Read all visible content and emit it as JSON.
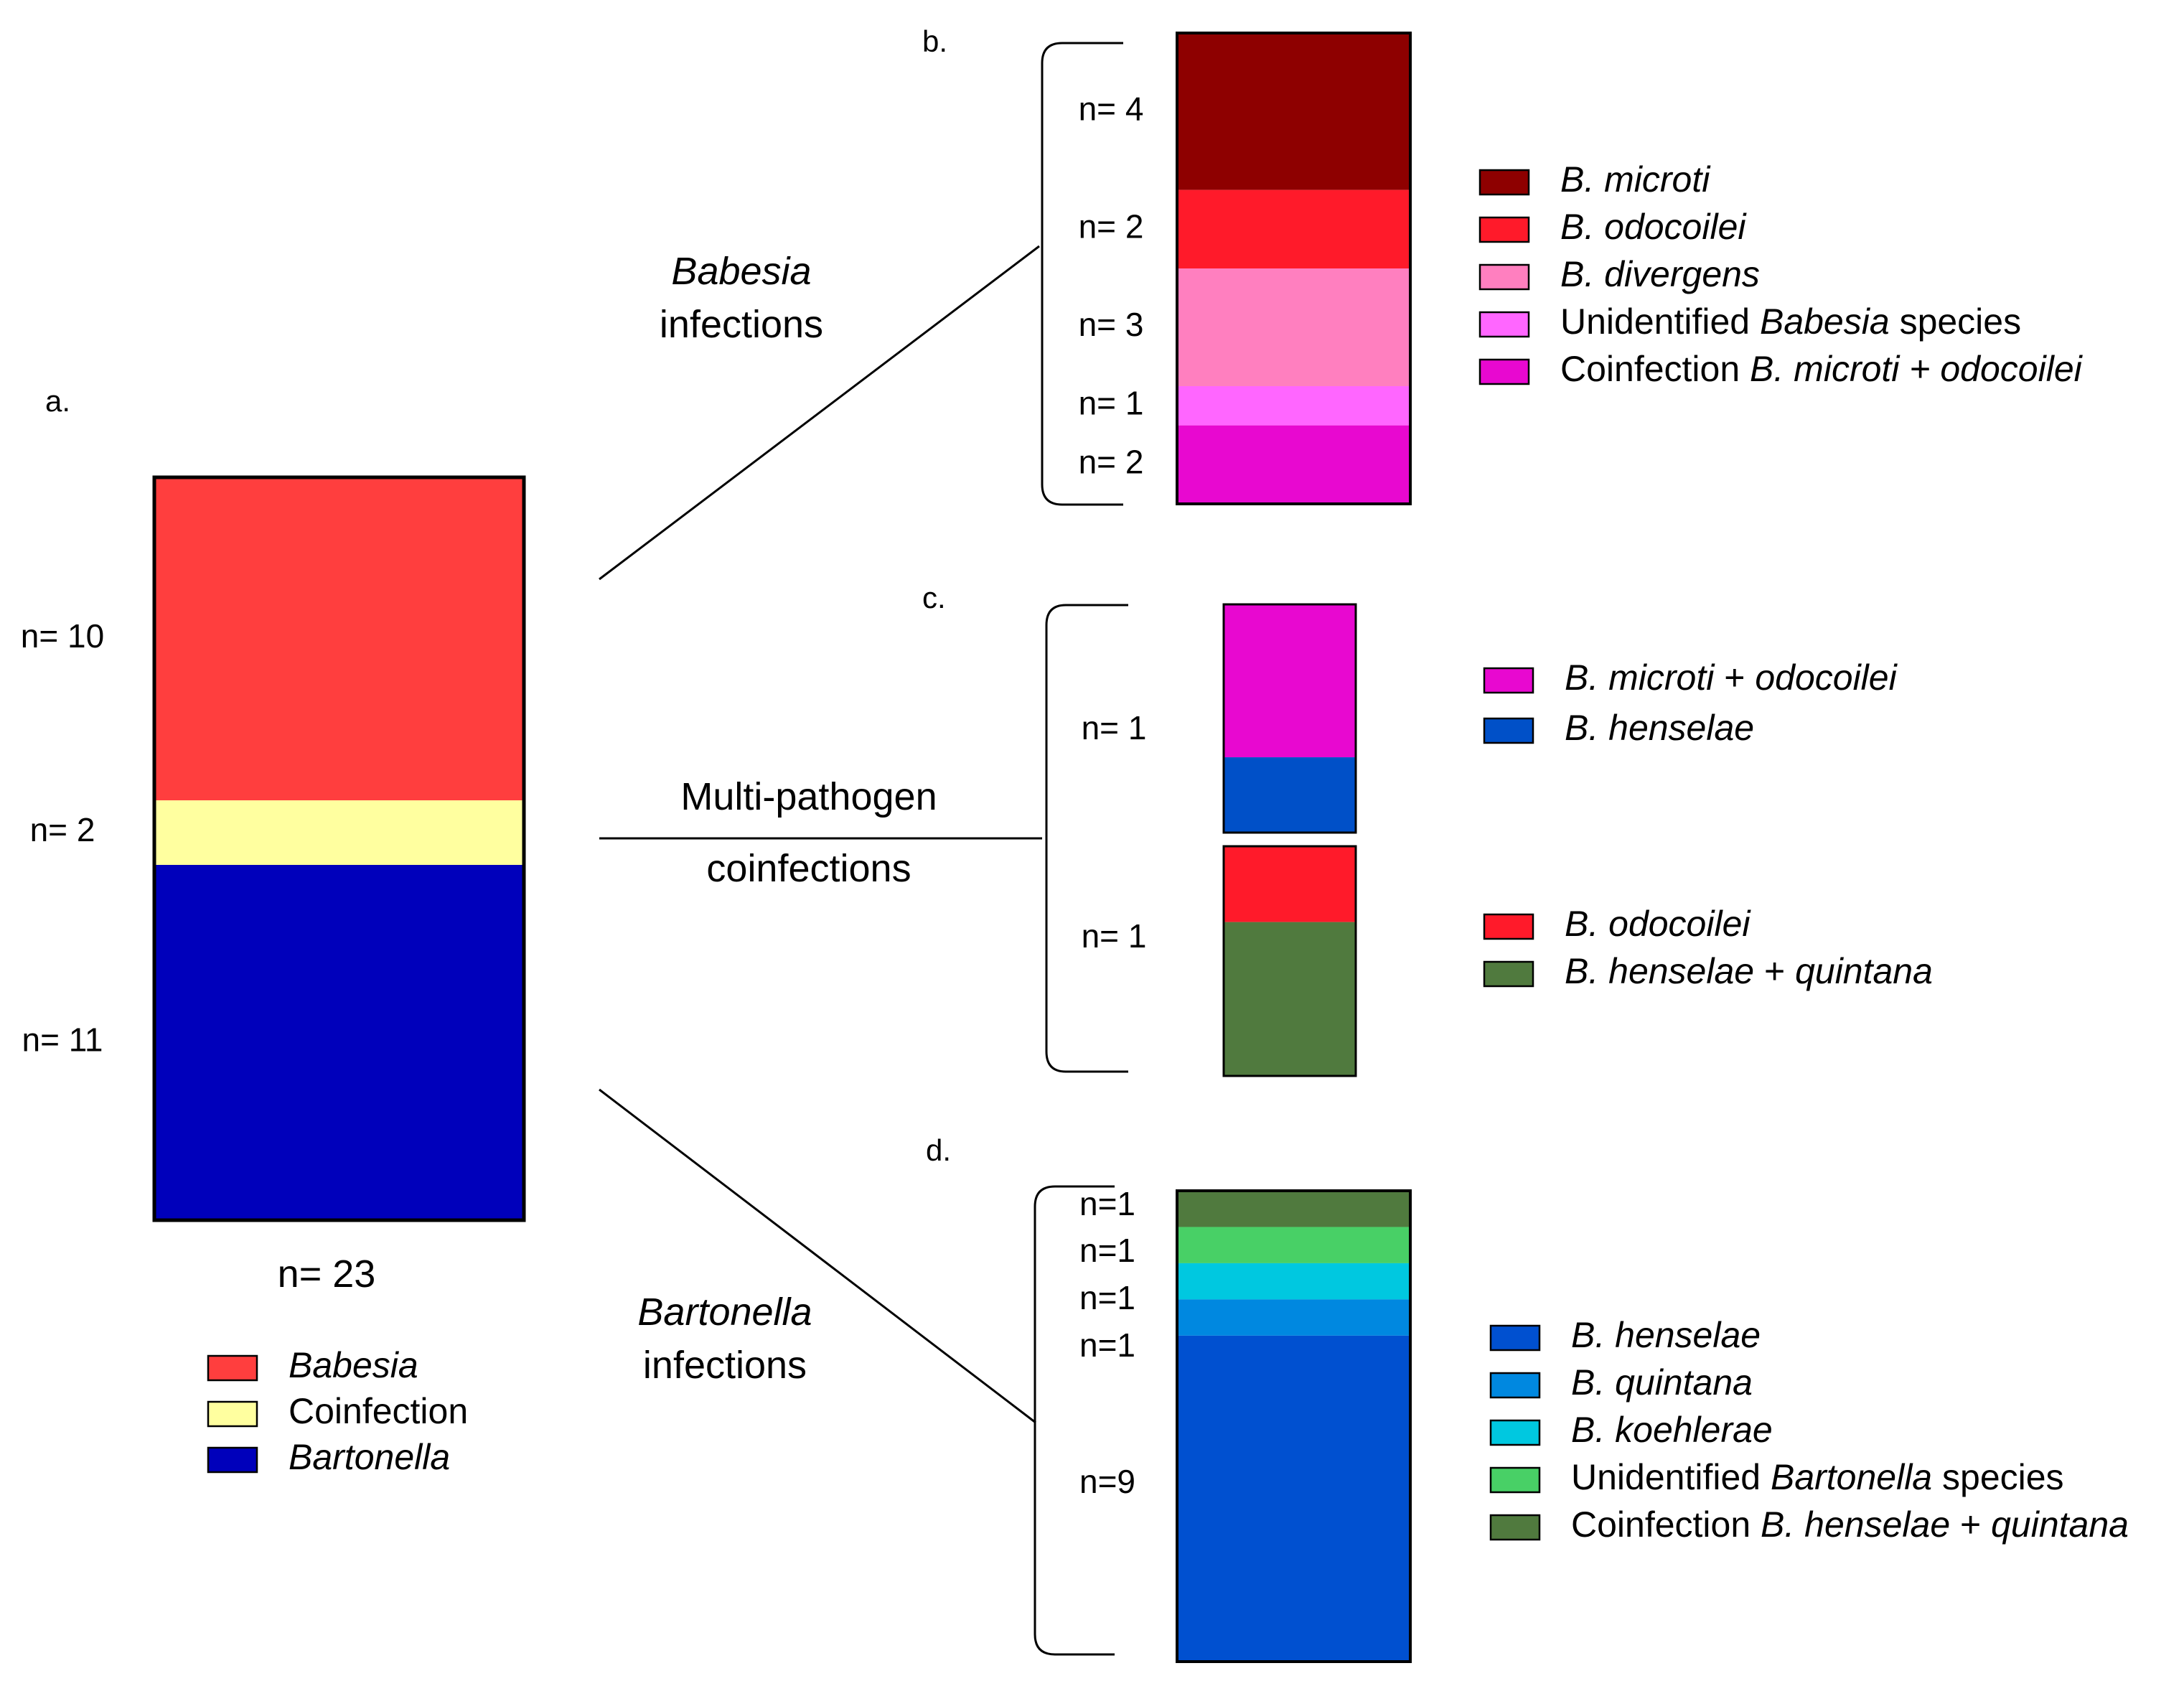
{
  "chart_data": [
    {
      "panel": "a.",
      "type": "stacked-bar",
      "total_label": "n= 23",
      "segments": [
        {
          "name": "Babesia",
          "n": 10,
          "label": "n= 10",
          "color": "#FF3E3E"
        },
        {
          "name": "Coinfection",
          "n": 2,
          "label": "n= 2",
          "color": "#FFFF9F"
        },
        {
          "name": "Bartonella",
          "n": 11,
          "label": "n= 11",
          "color": "#0000BB"
        }
      ],
      "legend": [
        {
          "parts": [
            {
              "t": "Babesia",
              "i": true
            }
          ],
          "color": "#FF3E3E"
        },
        {
          "parts": [
            {
              "t": "Coinfection",
              "i": false
            }
          ],
          "color": "#FFFF9F"
        },
        {
          "parts": [
            {
              "t": "Bartonella",
              "i": true
            }
          ],
          "color": "#0000BB"
        }
      ]
    },
    {
      "panel": "b.",
      "type": "stacked-bar",
      "segments": [
        {
          "n": 4,
          "label": "n= 4",
          "color": "#8E0000"
        },
        {
          "n": 2,
          "label": "n= 2",
          "color": "#FF1A2A"
        },
        {
          "n": 3,
          "label": "n= 3",
          "color": "#FF7FBF"
        },
        {
          "n": 1,
          "label": "n= 1",
          "color": "#FF66FF"
        },
        {
          "n": 2,
          "label": "n= 2",
          "color": "#E808D0"
        }
      ],
      "legend": [
        {
          "parts": [
            {
              "t": "B. microti",
              "i": true
            }
          ],
          "color": "#8E0000"
        },
        {
          "parts": [
            {
              "t": "B. odocoilei",
              "i": true
            }
          ],
          "color": "#FF1A2A"
        },
        {
          "parts": [
            {
              "t": "B. divergens",
              "i": true
            }
          ],
          "color": "#FF7FBF"
        },
        {
          "parts": [
            {
              "t": "Unidentified ",
              "i": false
            },
            {
              "t": "Babesia",
              "i": true
            },
            {
              "t": " species",
              "i": false
            }
          ],
          "color": "#FF66FF"
        },
        {
          "parts": [
            {
              "t": "Coinfection ",
              "i": false
            },
            {
              "t": "B. microti + odocoilei",
              "i": true
            }
          ],
          "color": "#E808D0"
        }
      ]
    },
    {
      "panel": "c.",
      "type": "stacked-bar",
      "bars": [
        {
          "label": "n= 1",
          "segments": [
            {
              "fraction": 0.67,
              "color": "#E808D0"
            },
            {
              "fraction": 0.33,
              "color": "#0050C8"
            }
          ],
          "legend": [
            {
              "parts": [
                {
                  "t": "B. microti",
                  "i": true
                },
                {
                  "t": " + ",
                  "i": false
                },
                {
                  "t": "odocoilei",
                  "i": true
                }
              ],
              "color": "#E808D0"
            },
            {
              "parts": [
                {
                  "t": "B. henselae",
                  "i": true
                }
              ],
              "color": "#0050C8"
            }
          ]
        },
        {
          "label": "n= 1",
          "segments": [
            {
              "fraction": 0.33,
              "color": "#FF1A2A"
            },
            {
              "fraction": 0.67,
              "color": "#507A3E"
            }
          ],
          "legend": [
            {
              "parts": [
                {
                  "t": "B. odocoilei",
                  "i": true
                }
              ],
              "color": "#FF1A2A"
            },
            {
              "parts": [
                {
                  "t": "B. henselae",
                  "i": true
                },
                {
                  "t": " + ",
                  "i": false
                },
                {
                  "t": "quintana",
                  "i": true
                }
              ],
              "color": "#507A3E"
            }
          ]
        }
      ]
    },
    {
      "panel": "d.",
      "type": "stacked-bar",
      "segments": [
        {
          "n": 1,
          "label": "n=1",
          "color": "#507A3E"
        },
        {
          "n": 1,
          "label": "n=1",
          "color": "#48D066"
        },
        {
          "n": 1,
          "label": "n=1",
          "color": "#00C8E0"
        },
        {
          "n": 1,
          "label": "n=1",
          "color": "#0088E0"
        },
        {
          "n": 9,
          "label": "n=9",
          "color": "#0050D0"
        }
      ],
      "legend": [
        {
          "parts": [
            {
              "t": "B. henselae",
              "i": true
            }
          ],
          "color": "#0050D0"
        },
        {
          "parts": [
            {
              "t": "B. quintana",
              "i": true
            }
          ],
          "color": "#0088E0"
        },
        {
          "parts": [
            {
              "t": "B. koehlerae",
              "i": true
            }
          ],
          "color": "#00C8E0"
        },
        {
          "parts": [
            {
              "t": "Unidentified ",
              "i": false
            },
            {
              "t": "Bartonella",
              "i": true
            },
            {
              "t": " species",
              "i": false
            }
          ],
          "color": "#48D066"
        },
        {
          "parts": [
            {
              "t": "Coinfection ",
              "i": false
            },
            {
              "t": "B. henselae",
              "i": true
            },
            {
              "t": " + ",
              "i": false
            },
            {
              "t": "quintana",
              "i": true
            }
          ],
          "color": "#507A3E"
        }
      ]
    }
  ],
  "connectors": {
    "babesia": {
      "line1": "Babesia",
      "line2": "infections"
    },
    "multi": {
      "line1": "Multi-pathogen",
      "line2": "coinfections"
    },
    "bartonella": {
      "line1": "Bartonella",
      "line2": "infections"
    }
  }
}
